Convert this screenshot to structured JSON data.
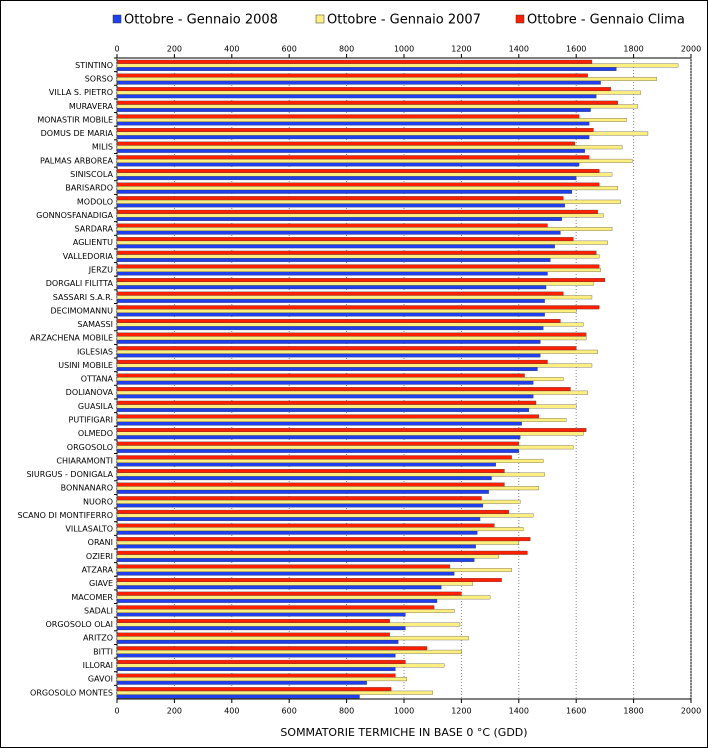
{
  "chart_data": {
    "type": "hbar",
    "xlabel": "SOMMATORIE TERMICHE IN BASE 0 °C (GDD)",
    "categories": [
      "STINTINO",
      "SORSO",
      "VILLA S. PIETRO",
      "MURAVERA",
      "MONASTIR MOBILE",
      "DOMUS DE MARIA",
      "MILIS",
      "PALMAS ARBOREA",
      "SINISCOLA",
      "BARISARDO",
      "MODOLO",
      "GONNOSFANADIGA",
      "SARDARA",
      "AGLIENTU",
      "VALLEDORIA",
      "JERZU",
      "DORGALI FILITTA",
      "SASSARI S.A.R.",
      "DECIMOMANNU",
      "SAMASSI",
      "ARZACHENA MOBILE",
      "IGLESIAS",
      "USINI MOBILE",
      "OTTANA",
      "DOLIANOVA",
      "GUASILA",
      "PUTIFIGARI",
      "OLMEDO",
      "ORGOSOLO",
      "CHIARAMONTI",
      "SIURGUS - DONIGALA",
      "BONNANARO",
      "NUORO",
      "SCANO DI MONTIFERRO",
      "VILLASALTO",
      "ORANI",
      "OZIERI",
      "ATZARA",
      "GIAVE",
      "MACOMER",
      "SADALI",
      "ORGOSOLO OLAI",
      "ARITZO",
      "BITTI",
      "ILLORAI",
      "GAVOI",
      "ORGOSOLO MONTES"
    ],
    "series": [
      {
        "name": "Ottobre - Gennaio 2008",
        "color": "#2040ee",
        "values": [
          1740,
          1685,
          1670,
          1650,
          1645,
          1645,
          1630,
          1610,
          1600,
          1585,
          1560,
          1550,
          1545,
          1525,
          1510,
          1500,
          1495,
          1490,
          1490,
          1485,
          1475,
          1475,
          1465,
          1450,
          1450,
          1435,
          1410,
          1405,
          1400,
          1320,
          1305,
          1295,
          1275,
          1265,
          1255,
          1250,
          1245,
          1175,
          1130,
          1115,
          1005,
          1005,
          980,
          970,
          970,
          870,
          845
        ]
      },
      {
        "name": "Ottobre - Gennaio 2007",
        "color": "#ffee80",
        "values": [
          1955,
          1880,
          1825,
          1815,
          1775,
          1850,
          1760,
          1795,
          1725,
          1745,
          1755,
          1695,
          1725,
          1710,
          1680,
          1685,
          1660,
          1655,
          1600,
          1625,
          1635,
          1675,
          1655,
          1555,
          1640,
          1600,
          1565,
          1625,
          1590,
          1485,
          1490,
          1470,
          1405,
          1450,
          1415,
          1400,
          1330,
          1375,
          1240,
          1300,
          1175,
          1195,
          1225,
          1200,
          1140,
          1010,
          1100
        ]
      },
      {
        "name": "Ottobre - Gennaio Clima",
        "color": "#ff2000",
        "values": [
          1655,
          1640,
          1720,
          1745,
          1610,
          1660,
          1595,
          1645,
          1680,
          1680,
          1555,
          1675,
          1500,
          1590,
          1670,
          1680,
          1700,
          1555,
          1680,
          1545,
          1635,
          1600,
          1500,
          1420,
          1580,
          1460,
          1470,
          1635,
          1400,
          1375,
          1350,
          1350,
          1270,
          1365,
          1315,
          1440,
          1430,
          1160,
          1340,
          1200,
          1105,
          950,
          950,
          1080,
          1005,
          970,
          955
        ]
      }
    ],
    "xlim": [
      0,
      2000
    ],
    "xticks": [
      0,
      200,
      400,
      600,
      800,
      1000,
      1200,
      1400,
      1600,
      1800,
      2000
    ],
    "grid": true,
    "legend": "top"
  }
}
